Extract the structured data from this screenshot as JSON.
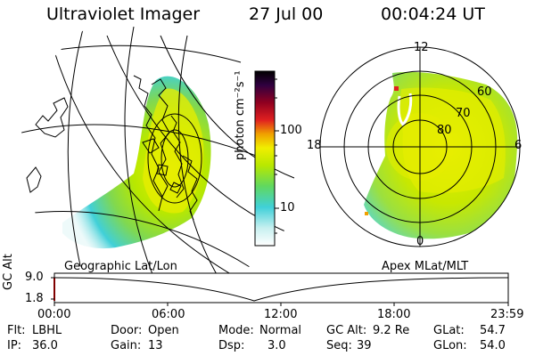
{
  "header": {
    "instrument": "Ultraviolet Imager",
    "date": "27 Jul 00",
    "time": "00:04:24 UT"
  },
  "colorbar": {
    "unit_label": "photon cm⁻²s⁻¹",
    "ticks": [
      "100",
      "10"
    ]
  },
  "left_panel": {
    "caption": "Geographic Lat/Lon"
  },
  "polar_panel": {
    "caption": "Apex MLat/MLT",
    "mlt_labels": [
      "12",
      "18",
      "6",
      "0"
    ],
    "mlat_labels": [
      "60",
      "70",
      "80"
    ]
  },
  "altitude_strip": {
    "axis_title": "GC Alt",
    "y_ticks": [
      "9.0",
      "1.8"
    ],
    "time_ticks": [
      "00:00",
      "06:00",
      "12:00",
      "18:00",
      "23:59"
    ]
  },
  "footer": {
    "row1": [
      {
        "label": "Flt:",
        "value": "LBHL"
      },
      {
        "label": "Door:",
        "value": "Open"
      },
      {
        "label": "Mode:",
        "value": "Normal"
      },
      {
        "label": "GC Alt:",
        "value": "9.2 Re"
      },
      {
        "label": "GLat:",
        "value": "54.7"
      }
    ],
    "row2": [
      {
        "label": "IP:",
        "value": "36.0"
      },
      {
        "label": "Gain:",
        "value": "13"
      },
      {
        "label": "Dsp:",
        "value": "3.0"
      },
      {
        "label": "Seq:",
        "value": "39"
      },
      {
        "label": "GLon:",
        "value": "54.0"
      }
    ]
  },
  "colors": {
    "scale": [
      "#ffffff",
      "#c8f0f0",
      "#40d0d8",
      "#9be000",
      "#e8ee00",
      "#f0a000",
      "#e02020",
      "#900020",
      "#300040",
      "#000000"
    ]
  }
}
